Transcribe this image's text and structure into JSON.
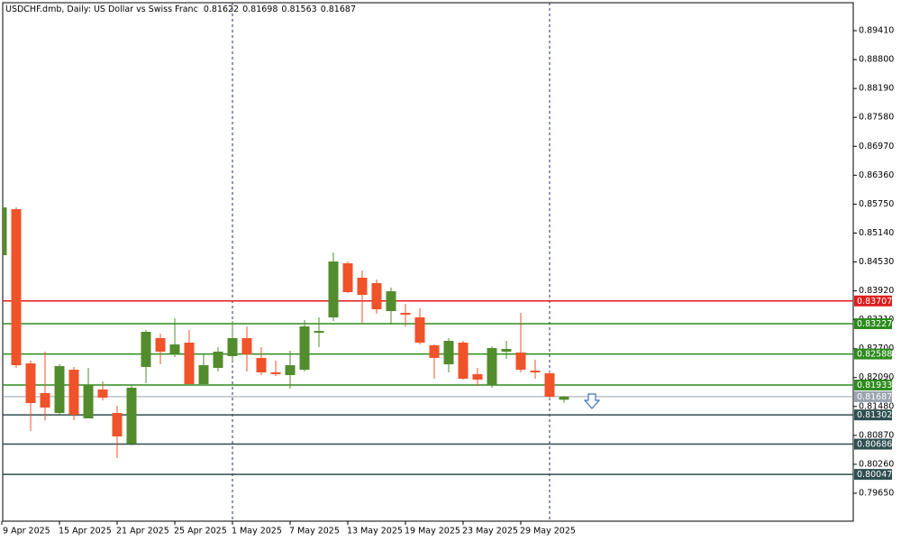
{
  "chart_data": {
    "type": "candlestick",
    "title": "USDCHF.dmb, Daily:  US Dollar vs Swiss Franc",
    "categories": [
      "9 Apr 2025",
      null,
      null,
      null,
      "15 Apr 2025",
      null,
      null,
      null,
      "21 Apr 2025",
      null,
      null,
      null,
      "25 Apr 2025",
      null,
      null,
      null,
      "1 May 2025",
      null,
      null,
      null,
      "7 May 2025",
      null,
      null,
      null,
      "13 May 2025",
      null,
      null,
      null,
      "19 May 2025",
      null,
      null,
      null,
      "23 May 2025",
      null,
      null,
      null,
      "29 May 2025",
      null,
      null,
      null
    ],
    "open": [
      0.84673,
      0.85643,
      0.82389,
      0.81762,
      0.81343,
      0.82256,
      0.81229,
      0.81838,
      0.81343,
      0.80696,
      0.82313,
      0.82922,
      0.82599,
      0.82827,
      0.81952,
      0.82294,
      0.82542,
      0.82922,
      0.82504,
      0.82199,
      0.82142,
      0.82256,
      0.83036,
      0.8336,
      0.84501,
      0.84197,
      0.84083,
      0.83493,
      0.83455,
      0.8336,
      0.8277,
      0.8237,
      0.82827,
      0.82161,
      0.81933,
      0.82637,
      0.82618,
      0.82237,
      0.8218,
      0.81622
    ],
    "high": [
      0.85719,
      0.85681,
      0.82447,
      0.82637,
      0.8237,
      0.82313,
      0.82294,
      0.82009,
      0.81495,
      0.81914,
      0.83093,
      0.83017,
      0.83341,
      0.83093,
      0.8258,
      0.82732,
      0.83284,
      0.8317,
      0.82732,
      0.82447,
      0.82656,
      0.83303,
      0.8336,
      0.8473,
      0.84539,
      0.84349,
      0.84159,
      0.83988,
      0.83645,
      0.8355,
      0.82789,
      0.82922,
      0.82865,
      0.82294,
      0.82751,
      0.82865,
      0.83455,
      0.82466,
      0.82218,
      0.81698
    ],
    "low": [
      0.84673,
      0.82294,
      0.80963,
      0.81191,
      0.81305,
      0.81191,
      0.81229,
      0.81609,
      0.80392,
      0.80658,
      0.81971,
      0.8237,
      0.82523,
      0.81952,
      0.81952,
      0.82218,
      0.82447,
      0.82218,
      0.82142,
      0.82123,
      0.81857,
      0.82218,
      0.82732,
      0.83284,
      0.83873,
      0.83246,
      0.83436,
      0.83208,
      0.8317,
      0.82789,
      0.82066,
      0.82199,
      0.82047,
      0.81914,
      0.81876,
      0.82485,
      0.82199,
      0.82066,
      0.81647,
      0.81563
    ],
    "close": [
      0.85681,
      0.82351,
      0.81552,
      0.81457,
      0.82332,
      0.81305,
      0.81933,
      0.81666,
      0.80848,
      0.81876,
      0.83055,
      0.82637,
      0.82789,
      0.81952,
      0.82351,
      0.82637,
      0.82922,
      0.8258,
      0.82199,
      0.82161,
      0.82351,
      0.8317,
      0.83074,
      0.84539,
      0.83892,
      0.83835,
      0.83531,
      0.83911,
      0.83417,
      0.82827,
      0.82504,
      0.82865,
      0.82066,
      0.82047,
      0.82713,
      0.82694,
      0.82256,
      0.82199,
      0.81685,
      0.81687
    ],
    "up_color": "#528c2c",
    "down_color": "#f0522a",
    "levels": [
      {
        "value": 0.83707,
        "color": "#e01c1c"
      },
      {
        "value": 0.83227,
        "color": "#2e8b1e"
      },
      {
        "value": 0.82588,
        "color": "#2e8b1e"
      },
      {
        "value": 0.81933,
        "color": "#2e8b1e"
      },
      {
        "value": 0.81302,
        "color": "#2f4f4f"
      },
      {
        "value": 0.80686,
        "color": "#2f4f4f"
      },
      {
        "value": 0.80047,
        "color": "#2f4f4f"
      }
    ],
    "ylim": [
      0.7906,
      0.9
    ],
    "yticks": [
      {
        "value": 0.8941,
        "label": "0.89410"
      },
      {
        "value": 0.888,
        "label": "0.88800"
      },
      {
        "value": 0.8819,
        "label": "0.88190"
      },
      {
        "value": 0.8758,
        "label": "0.87580"
      },
      {
        "value": 0.8697,
        "label": "0.86970"
      },
      {
        "value": 0.8636,
        "label": "0.86360"
      },
      {
        "value": 0.8575,
        "label": "0.85750"
      },
      {
        "value": 0.8514,
        "label": "0.85140"
      },
      {
        "value": 0.8453,
        "label": "0.84530"
      },
      {
        "value": 0.8392,
        "label": "0.83920"
      },
      {
        "value": 0.8331,
        "label": "0.83310"
      },
      {
        "value": 0.827,
        "label": "0.82700"
      },
      {
        "value": 0.8209,
        "label": "0.82090"
      },
      {
        "value": 0.8148,
        "label": "0.81480"
      },
      {
        "value": 0.8087,
        "label": "0.80870"
      },
      {
        "value": 0.8026,
        "label": "0.80260"
      },
      {
        "value": 0.7965,
        "label": "0.79650"
      }
    ]
  }
}
